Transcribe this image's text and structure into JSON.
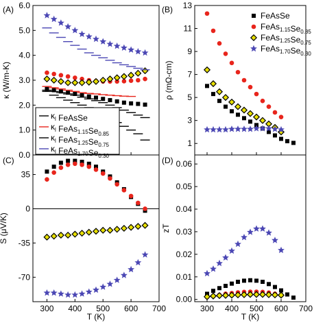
{
  "chart_data": [
    {
      "panel": "(A)",
      "type": "scatter",
      "xlabel": "",
      "ylabel": "κ (W/m-K)",
      "xlim": [
        250,
        700
      ],
      "ylim": [
        0,
        6
      ],
      "xticks": [
        300,
        400,
        500,
        600,
        700
      ],
      "yticks": [
        0.0,
        1.0,
        2.0,
        3.0,
        4.0,
        5.0,
        6.0
      ],
      "xtick_labels": [
        "300",
        "400",
        "500",
        "600",
        "700"
      ],
      "ytick_labels": [
        "0.0",
        "1.0",
        "2.0",
        "3.0",
        "4.0",
        "5.0",
        "6.0"
      ],
      "legend_position": "bottom-left",
      "legend": [
        {
          "prefix": "κ",
          "sub": "l",
          "main": " FeAsSe",
          "sub2": "",
          "main2": "",
          "sub3": "",
          "marker": "tick",
          "color": "#000000"
        },
        {
          "prefix": "κ",
          "sub": "l",
          "main": " FeAs",
          "sub2": "1.15",
          "main2": "Se",
          "sub3": "0.85",
          "marker": "tick",
          "color": "#e8251c"
        },
        {
          "prefix": "κ",
          "sub": "l",
          "main": " FeAs",
          "sub2": "1.25",
          "main2": "Se",
          "sub3": "0.75",
          "marker": "tick",
          "color": "#000000"
        },
        {
          "prefix": "κ",
          "sub": "l",
          "main": " FeAs",
          "sub2": "1.70",
          "main2": "Se",
          "sub3": "0.30",
          "marker": "tick",
          "color": "#4b47b4"
        }
      ],
      "series": [
        {
          "marker": "square",
          "color": "#000000",
          "x": [
            300,
            325,
            350,
            375,
            400,
            425,
            450,
            475,
            500,
            525,
            550,
            575,
            600,
            625,
            650
          ],
          "y": [
            2.65,
            2.6,
            2.55,
            2.5,
            2.45,
            2.4,
            2.35,
            2.3,
            2.25,
            2.2,
            2.15,
            2.1,
            2.07,
            2.05,
            2.02
          ]
        },
        {
          "marker": "circle",
          "color": "#e8251c",
          "x": [
            300,
            325,
            350,
            375,
            400,
            425,
            450,
            475,
            500,
            525,
            550,
            575,
            600,
            625,
            650
          ],
          "y": [
            3.3,
            3.25,
            3.2,
            3.15,
            3.1,
            3.05,
            3.0,
            2.97,
            2.95,
            2.95,
            2.95,
            2.96,
            2.98,
            3.0,
            3.05
          ]
        },
        {
          "marker": "diamond",
          "color": "#e8e000",
          "x": [
            300,
            325,
            350,
            375,
            400,
            425,
            450,
            475,
            500,
            525,
            550,
            575,
            600,
            625,
            650
          ],
          "y": [
            3.05,
            3.0,
            2.95,
            2.9,
            2.9,
            2.9,
            2.92,
            2.95,
            3.0,
            3.05,
            3.1,
            3.15,
            3.2,
            3.28,
            3.38
          ]
        },
        {
          "marker": "star",
          "color": "#4b47b4",
          "x": [
            300,
            325,
            350,
            375,
            400,
            425,
            450,
            475,
            500,
            525,
            550,
            575,
            600,
            625,
            650
          ],
          "y": [
            5.6,
            5.45,
            5.3,
            5.15,
            5.0,
            4.85,
            4.75,
            4.65,
            4.55,
            4.45,
            4.37,
            4.3,
            4.22,
            4.15,
            4.1
          ]
        },
        {
          "marker": "tick",
          "color": "#000000",
          "x": [
            300,
            325,
            350,
            375,
            400,
            425,
            450,
            475,
            500,
            525,
            550,
            575,
            600,
            625,
            650
          ],
          "y": [
            2.55,
            2.4,
            2.3,
            2.2,
            2.1,
            2.0,
            1.9,
            1.75,
            1.6,
            1.45,
            1.3,
            1.15,
            1.0,
            0.85,
            0.6
          ]
        },
        {
          "marker": "tick",
          "color": "#e8251c",
          "x": [
            300,
            325,
            350,
            375,
            400,
            425,
            450,
            475,
            500,
            525,
            550,
            575,
            600
          ],
          "y": [
            2.75,
            2.7,
            2.65,
            2.6,
            2.55,
            2.5,
            2.47,
            2.45,
            2.42,
            2.4,
            2.38,
            2.36,
            2.35
          ]
        },
        {
          "marker": "tick",
          "color": "#000000",
          "x": [
            300,
            325,
            350,
            375,
            400,
            425,
            450,
            475,
            500,
            525,
            550,
            575,
            600,
            625,
            650
          ],
          "y": [
            2.6,
            2.55,
            2.5,
            2.45,
            2.4,
            2.32,
            2.25,
            2.18,
            2.1,
            2.0,
            1.9,
            1.8,
            1.7,
            1.6,
            1.5
          ]
        },
        {
          "marker": "tick",
          "color": "#4b47b4",
          "x": [
            300,
            325,
            350,
            375,
            400,
            425,
            450,
            475,
            500,
            525,
            550,
            575,
            600,
            625,
            650
          ],
          "y": [
            5.1,
            4.9,
            4.72,
            4.55,
            4.4,
            4.25,
            4.1,
            4.0,
            3.9,
            3.8,
            3.7,
            3.62,
            3.55,
            3.48,
            3.42
          ]
        }
      ]
    },
    {
      "panel": "(B)",
      "type": "scatter",
      "xlabel": "",
      "ylabel": "ρ (mΩ-cm)",
      "xlim": [
        250,
        700
      ],
      "ylim": [
        0,
        13
      ],
      "xticks": [
        300,
        400,
        500,
        600,
        700
      ],
      "yticks": [
        1,
        3,
        5,
        7,
        9,
        11,
        13
      ],
      "xtick_labels": [
        "300",
        "400",
        "500",
        "600",
        "700"
      ],
      "ytick_labels": [
        "1",
        "3",
        "5",
        "7",
        "9",
        "11",
        "13"
      ],
      "legend_position": "top-right",
      "legend": [
        {
          "prefix": "",
          "sub": "",
          "main": "FeAsSe",
          "sub2": "",
          "main2": "",
          "sub3": "",
          "marker": "square",
          "color": "#000000"
        },
        {
          "prefix": "",
          "sub": "",
          "main": "FeAs",
          "sub2": "1.15",
          "main2": "Se",
          "sub3": "0.85",
          "marker": "circle",
          "color": "#e8251c"
        },
        {
          "prefix": "",
          "sub": "",
          "main": "FeAs",
          "sub2": "1.25",
          "main2": "Se",
          "sub3": "0.75",
          "marker": "diamond",
          "color": "#e8e000"
        },
        {
          "prefix": "",
          "sub": "",
          "main": "FeAs",
          "sub2": "1.70",
          "main2": "Se",
          "sub3": "0.30",
          "marker": "star",
          "color": "#4b47b4"
        }
      ],
      "series": [
        {
          "marker": "square",
          "color": "#000000",
          "x": [
            300,
            325,
            350,
            375,
            400,
            425,
            450,
            475,
            500,
            525,
            550,
            575,
            600,
            625,
            650
          ],
          "y": [
            6.0,
            5.3,
            4.7,
            4.2,
            3.8,
            3.5,
            3.2,
            2.9,
            2.6,
            2.3,
            2.0,
            1.7,
            1.4,
            1.2,
            1.05
          ]
        },
        {
          "marker": "circle",
          "color": "#e8251c",
          "x": [
            300,
            325,
            350,
            375,
            400,
            425,
            450,
            475,
            500,
            525,
            550,
            575,
            600
          ],
          "y": [
            12.3,
            10.8,
            9.7,
            8.8,
            8.0,
            7.2,
            6.5,
            5.9,
            5.3,
            4.7,
            4.2,
            3.7,
            3.3
          ]
        },
        {
          "marker": "diamond",
          "color": "#e8e000",
          "x": [
            300,
            325,
            350,
            375,
            400,
            425,
            450,
            475,
            500,
            525,
            550,
            575,
            600
          ],
          "y": [
            7.4,
            6.2,
            5.5,
            5.0,
            4.6,
            4.2,
            3.9,
            3.6,
            3.3,
            3.0,
            2.7,
            2.4,
            2.0
          ]
        },
        {
          "marker": "star",
          "color": "#4b47b4",
          "x": [
            300,
            325,
            350,
            375,
            400,
            425,
            450,
            475,
            500,
            525,
            550,
            575,
            600
          ],
          "y": [
            2.2,
            2.2,
            2.2,
            2.2,
            2.25,
            2.25,
            2.25,
            2.25,
            2.3,
            2.3,
            2.3,
            2.25,
            2.2
          ]
        }
      ]
    },
    {
      "panel": "(C)",
      "type": "scatter",
      "xlabel": "T (K)",
      "ylabel": "S (μV/K)",
      "xlim": [
        250,
        700
      ],
      "ylim": [
        -95,
        55
      ],
      "xticks": [
        300,
        400,
        500,
        600,
        700
      ],
      "yticks": [
        35,
        0,
        -35,
        -70
      ],
      "xtick_labels": [
        "300",
        "400",
        "500",
        "600",
        "700"
      ],
      "ytick_labels": [
        "35",
        "0",
        "-35",
        "-70"
      ],
      "series": [
        {
          "marker": "square",
          "color": "#000000",
          "x": [
            300,
            325,
            350,
            375,
            400,
            425,
            450,
            475,
            500,
            525,
            550,
            575,
            600,
            625,
            650
          ],
          "y": [
            38,
            43,
            47,
            49,
            49,
            48,
            46,
            43,
            38,
            33,
            27,
            20,
            12,
            5,
            -2
          ]
        },
        {
          "marker": "circle",
          "color": "#e8251c",
          "x": [
            300,
            325,
            350,
            375,
            400,
            425,
            450,
            475,
            500,
            525,
            550,
            575,
            600,
            625,
            650
          ],
          "y": [
            30,
            37,
            42,
            45,
            46,
            45,
            43,
            40,
            36,
            31,
            25,
            19,
            13,
            6,
            0
          ]
        },
        {
          "marker": "diamond",
          "color": "#e8e000",
          "x": [
            300,
            325,
            350,
            375,
            400,
            425,
            450,
            475,
            500,
            525,
            550,
            575,
            600,
            625,
            650
          ],
          "y": [
            -29,
            -28,
            -27,
            -27,
            -26,
            -25,
            -24,
            -23,
            -22,
            -22,
            -21,
            -20,
            -19,
            -18,
            -17
          ]
        },
        {
          "marker": "star",
          "color": "#4b47b4",
          "x": [
            300,
            325,
            350,
            375,
            400,
            425,
            450,
            475,
            500,
            525,
            550,
            575,
            600,
            625,
            650
          ],
          "y": [
            -86,
            -86,
            -87,
            -88,
            -88,
            -87,
            -85,
            -83,
            -80,
            -77,
            -73,
            -68,
            -62,
            -55,
            -47
          ]
        }
      ]
    },
    {
      "panel": "(D)",
      "type": "scatter",
      "xlabel": "T (K)",
      "ylabel": "zT",
      "xlim": [
        250,
        700
      ],
      "ylim": [
        -0.001,
        0.064
      ],
      "xticks": [
        300,
        400,
        500,
        600,
        700
      ],
      "yticks": [
        0.0,
        0.01,
        0.02,
        0.03,
        0.04,
        0.05,
        0.06
      ],
      "xtick_labels": [
        "300",
        "400",
        "500",
        "600",
        "700"
      ],
      "ytick_labels": [
        "0.00",
        "0.01",
        "0.02",
        "0.03",
        "0.04",
        "0.05",
        "0.06"
      ],
      "series": [
        {
          "marker": "square",
          "color": "#000000",
          "x": [
            300,
            325,
            350,
            375,
            400,
            425,
            450,
            475,
            500,
            525,
            550,
            575,
            600,
            625,
            650
          ],
          "y": [
            0.0025,
            0.0038,
            0.005,
            0.006,
            0.007,
            0.0078,
            0.0083,
            0.0085,
            0.0083,
            0.0078,
            0.0068,
            0.0055,
            0.004,
            0.0022,
            0.0008
          ]
        },
        {
          "marker": "circle",
          "color": "#e8251c",
          "x": [
            300,
            325,
            350,
            375,
            400,
            425,
            450,
            475,
            500,
            525,
            550,
            575,
            600
          ],
          "y": [
            0.001,
            0.0015,
            0.002,
            0.0025,
            0.0028,
            0.0031,
            0.0033,
            0.0034,
            0.0034,
            0.0033,
            0.003,
            0.0025,
            0.002
          ]
        },
        {
          "marker": "diamond",
          "color": "#e8e000",
          "x": [
            300,
            325,
            350,
            375,
            400,
            425,
            450,
            475,
            500,
            525,
            550,
            575,
            600
          ],
          "y": [
            0.0012,
            0.0015,
            0.0017,
            0.0018,
            0.0019,
            0.002,
            0.0021,
            0.0022,
            0.0022,
            0.0022,
            0.0021,
            0.002,
            0.0019
          ]
        },
        {
          "marker": "star",
          "color": "#4b47b4",
          "x": [
            300,
            325,
            350,
            375,
            400,
            425,
            450,
            475,
            500,
            525,
            550,
            575,
            600
          ],
          "y": [
            0.0115,
            0.0135,
            0.016,
            0.0185,
            0.0215,
            0.0245,
            0.0275,
            0.0298,
            0.0313,
            0.0313,
            0.0295,
            0.0262,
            0.0218
          ]
        }
      ]
    }
  ]
}
